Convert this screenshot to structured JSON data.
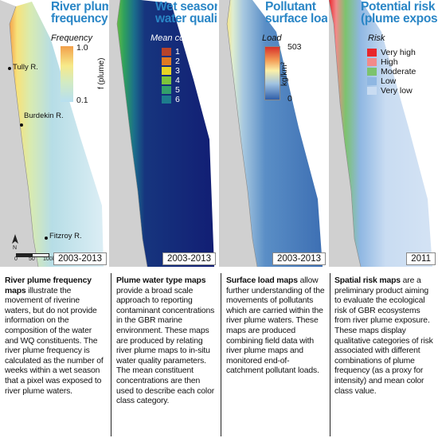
{
  "panels": [
    {
      "title_line1": "River plume",
      "title_line2": "frequency",
      "legend_title": "Frequency",
      "legend_top": "1.0",
      "legend_bottom": "0.1",
      "legend_axis": "f (plume)",
      "year": "2003-2013",
      "places": [
        "Tully R.",
        "Burdekin R.",
        "Fitzroy R."
      ],
      "scale_labels": [
        "0",
        "50",
        "100km"
      ],
      "north": "N"
    },
    {
      "title_line1": "Wet season",
      "title_line2": "water quality",
      "legend_title": "Mean colour class",
      "classes": [
        "1",
        "2",
        "3",
        "4",
        "5",
        "6"
      ],
      "class_colors": [
        "#b8432a",
        "#e07a22",
        "#e8d424",
        "#7dc43a",
        "#33a06a",
        "#1d7d8c"
      ],
      "year": "2003-2013"
    },
    {
      "title_line1": "Pollutant",
      "title_line2": "surface loads",
      "legend_title": "Load",
      "legend_top": "503",
      "legend_bottom": "0",
      "legend_axis": "kg/km²",
      "year": "2003-2013"
    },
    {
      "title_line1": "Potential risk",
      "title_line2": "(plume exposure)",
      "legend_title": "Risk",
      "classes": [
        "Very high",
        "High",
        "Moderate",
        "Low",
        "Very low"
      ],
      "class_colors": [
        "#e8262c",
        "#f28a8a",
        "#7cc36e",
        "#8fb7e2",
        "#c9dcf2"
      ],
      "year": "2011"
    }
  ],
  "descriptions": [
    {
      "bold": "River plume frequency maps",
      "text": " illustrate the movement of riverine waters, but do not provide information on the composition of the water and WQ constituents. The river plume frequency is calculated as the number of weeks within a wet season that a pixel was exposed to river plume waters."
    },
    {
      "bold": "Plume water type maps",
      "text": " provide a broad scale approach to reporting contaminant concentrations in the GBR marine environment. These maps are produced by relating river plume maps to in-situ water quality parameters. The mean constituent concentrations are then used to describe each color class category."
    },
    {
      "bold": "Surface load maps",
      "text": " allow further understanding of the movements of pollutants which are carried within the river plume waters. These maps are produced combining field data with river plume maps and monitored end-of-catchment pollutant loads."
    },
    {
      "bold": "Spatial risk maps",
      "text": " are a preliminary product aiming to evaluate the ecological risk of GBR ecosystems from river plume exposure. These maps display qualitative categories of risk associated with different combinations of plume frequency (as a proxy for intensity) and mean color class value."
    }
  ]
}
